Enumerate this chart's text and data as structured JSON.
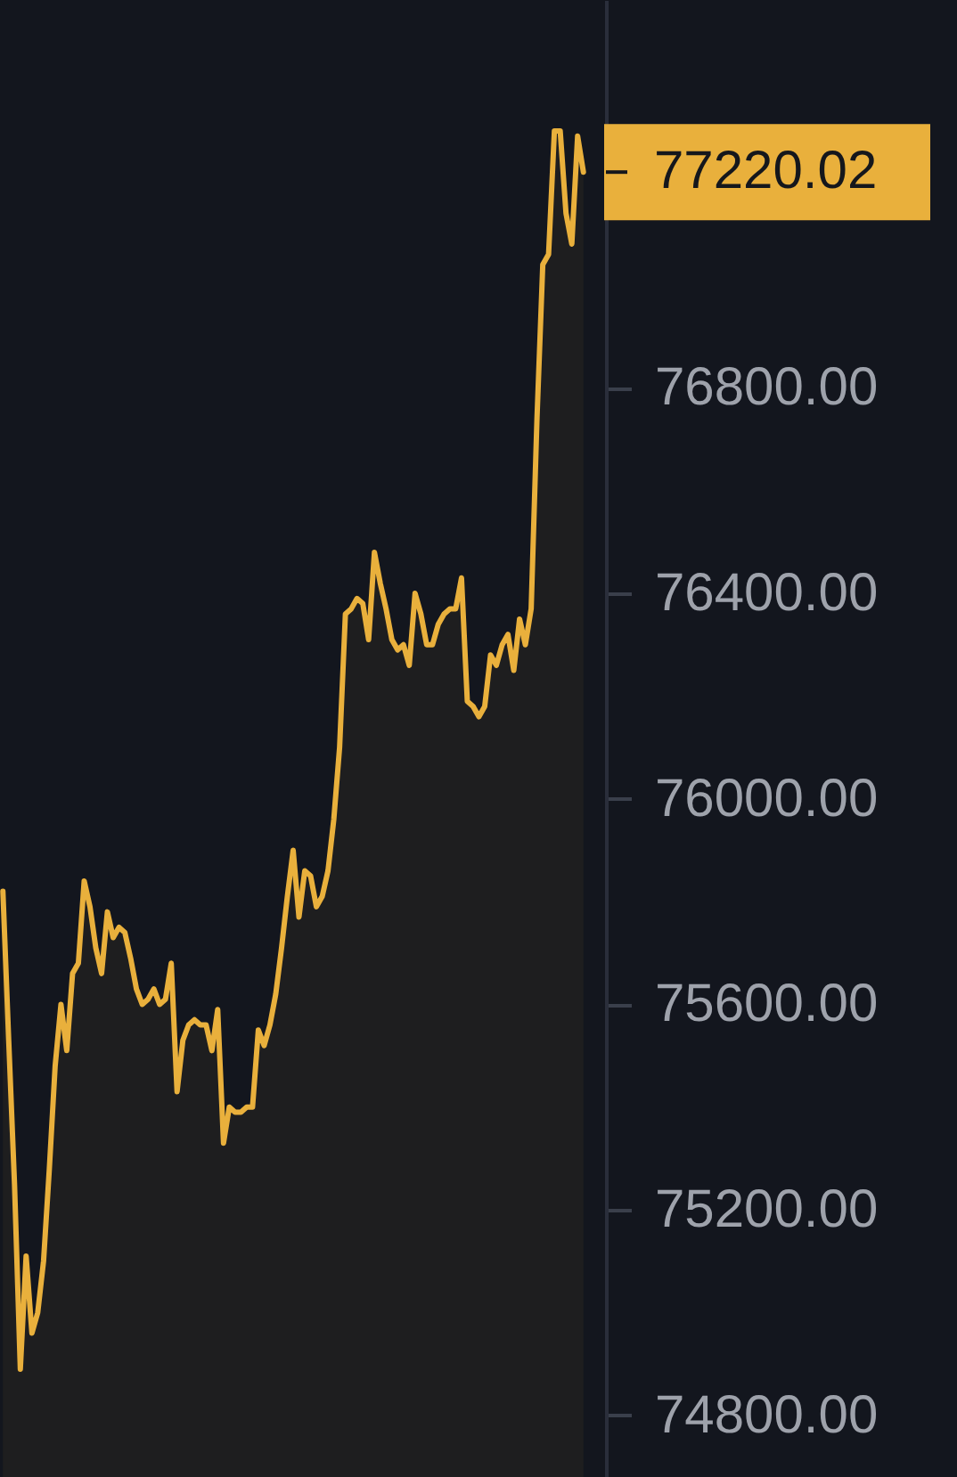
{
  "chart_data": {
    "type": "area",
    "categories": [
      null,
      null,
      null,
      null,
      null,
      null,
      null,
      null,
      null,
      null,
      null,
      null,
      null,
      null,
      null,
      null,
      null,
      null,
      null,
      null,
      null,
      null,
      null,
      null,
      null,
      null,
      null,
      null,
      null,
      null,
      null,
      null,
      null,
      null,
      null,
      null,
      null,
      null,
      null,
      null,
      null,
      null,
      null,
      null,
      null,
      null,
      null,
      null,
      null,
      null,
      null,
      null,
      null,
      null,
      null,
      null,
      null,
      null,
      null,
      null,
      null,
      null,
      null,
      null,
      null,
      null,
      null,
      null,
      null,
      null,
      null,
      null,
      null,
      null,
      null,
      null,
      null,
      null,
      null,
      null,
      null,
      null,
      null,
      null,
      null,
      null,
      null,
      null,
      null,
      null,
      null,
      null,
      null,
      null,
      null,
      null,
      null,
      null,
      null,
      null,
      null
    ],
    "series": [
      {
        "color": "#e9b03c",
        "values": [
          75820,
          75530,
          75250,
          74890,
          75110,
          74960,
          75000,
          75100,
          75280,
          75480,
          75600,
          75510,
          75660,
          75680,
          75840,
          75790,
          75710,
          75660,
          75780,
          75730,
          75750,
          75740,
          75690,
          75630,
          75600,
          75610,
          75630,
          75600,
          75610,
          75680,
          75430,
          75530,
          75560,
          75570,
          75560,
          75560,
          75510,
          75590,
          75330,
          75400,
          75390,
          75390,
          75400,
          75400,
          75550,
          75520,
          75560,
          75620,
          75710,
          75810,
          75900,
          75770,
          75860,
          75850,
          75790,
          75810,
          75860,
          75960,
          76100,
          76360,
          76370,
          76390,
          76380,
          76310,
          76480,
          76420,
          76370,
          76310,
          76290,
          76300,
          76260,
          76400,
          76360,
          76300,
          76300,
          76340,
          76360,
          76370,
          76370,
          76430,
          76190,
          76180,
          76160,
          76180,
          76280,
          76260,
          76300,
          76320,
          76250,
          76350,
          76300,
          76370,
          76740,
          77040,
          77060,
          77300,
          77300,
          77140,
          77080,
          77290,
          77220.02
        ]
      }
    ],
    "ylim": [
      74680,
      77555
    ],
    "yticks": [
      {
        "value": 74800,
        "label": "74800.00"
      },
      {
        "value": 75200,
        "label": "75200.00"
      },
      {
        "value": 75600,
        "label": "75600.00"
      },
      {
        "value": 76000,
        "label": "76000.00"
      },
      {
        "value": 76400,
        "label": "76400.00"
      },
      {
        "value": 76800,
        "label": "76800.00"
      }
    ],
    "annotations": [
      "77220.02"
    ]
  }
}
